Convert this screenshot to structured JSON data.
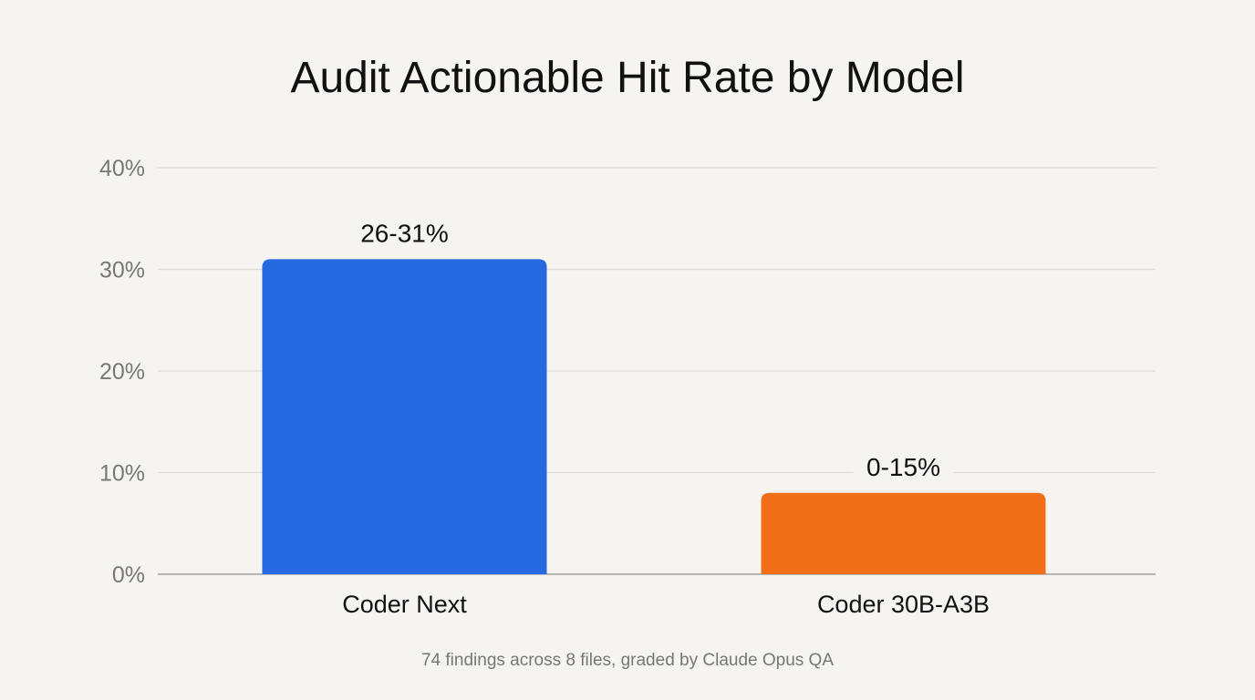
{
  "chart_data": {
    "type": "bar",
    "title": "Audit Actionable Hit Rate by Model",
    "categories": [
      "Coder Next",
      "Coder 30B-A3B"
    ],
    "values": [
      31,
      8
    ],
    "data_labels": [
      "26-31%",
      "0-15%"
    ],
    "colors": [
      "#2568df",
      "#f26f1a"
    ],
    "ylim": [
      0,
      40
    ],
    "yticks": [
      0,
      10,
      20,
      30,
      40
    ],
    "ytick_labels": [
      "0%",
      "10%",
      "20%",
      "30%",
      "40%"
    ],
    "grid": true,
    "xlabel": "",
    "ylabel": "",
    "footnote": "74 findings across 8 files, graded by Claude Opus QA"
  }
}
